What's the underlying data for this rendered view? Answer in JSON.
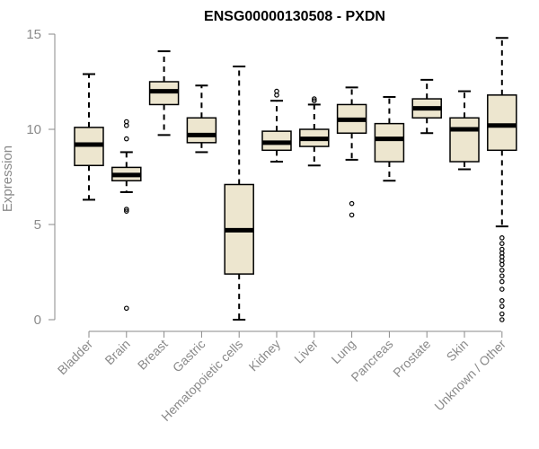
{
  "chart_data": {
    "type": "boxplot",
    "title": "ENSG00000130508 - PXDN",
    "xlabel": "",
    "ylabel": "Expression",
    "ylim": [
      0,
      15
    ],
    "yticks": [
      0,
      5,
      10,
      15
    ],
    "box_fill": "#ede6cf",
    "box_stroke": "#000000",
    "axis_color": "#8a8a8a",
    "categories": [
      "Bladder",
      "Brain",
      "Breast",
      "Gastric",
      "Hematopoietic cells",
      "Kidney",
      "Liver",
      "Lung",
      "Pancreas",
      "Prostate",
      "Skin",
      "Unknown / Other"
    ],
    "boxes": [
      {
        "name": "Bladder",
        "whislo": 6.3,
        "q1": 8.1,
        "med": 9.2,
        "q3": 10.1,
        "whishi": 12.9,
        "fliers": []
      },
      {
        "name": "Brain",
        "whislo": 6.7,
        "q1": 7.3,
        "med": 7.6,
        "q3": 8.0,
        "whishi": 8.8,
        "fliers": [
          10.4,
          10.2,
          9.5,
          5.8,
          5.7,
          0.6
        ]
      },
      {
        "name": "Breast",
        "whislo": 9.7,
        "q1": 11.3,
        "med": 12.0,
        "q3": 12.5,
        "whishi": 14.1,
        "fliers": []
      },
      {
        "name": "Gastric",
        "whislo": 8.8,
        "q1": 9.3,
        "med": 9.7,
        "q3": 10.6,
        "whishi": 12.3,
        "fliers": []
      },
      {
        "name": "Hematopoietic cells",
        "whislo": 0.0,
        "q1": 2.4,
        "med": 4.7,
        "q3": 7.1,
        "whishi": 13.3,
        "fliers": []
      },
      {
        "name": "Kidney",
        "whislo": 8.3,
        "q1": 8.9,
        "med": 9.3,
        "q3": 9.9,
        "whishi": 11.5,
        "fliers": [
          12.0,
          11.8
        ]
      },
      {
        "name": "Liver",
        "whislo": 8.1,
        "q1": 9.1,
        "med": 9.5,
        "q3": 10.0,
        "whishi": 11.3,
        "fliers": [
          11.6,
          11.5
        ]
      },
      {
        "name": "Lung",
        "whislo": 8.4,
        "q1": 9.8,
        "med": 10.5,
        "q3": 11.3,
        "whishi": 12.2,
        "fliers": [
          6.1,
          5.5
        ]
      },
      {
        "name": "Pancreas",
        "whislo": 7.3,
        "q1": 8.3,
        "med": 9.5,
        "q3": 10.3,
        "whishi": 11.7,
        "fliers": []
      },
      {
        "name": "Prostate",
        "whislo": 9.8,
        "q1": 10.6,
        "med": 11.1,
        "q3": 11.6,
        "whishi": 12.6,
        "fliers": []
      },
      {
        "name": "Skin",
        "whislo": 7.9,
        "q1": 8.3,
        "med": 10.0,
        "q3": 10.6,
        "whishi": 12.0,
        "fliers": []
      },
      {
        "name": "Unknown / Other",
        "whislo": 4.9,
        "q1": 8.9,
        "med": 10.2,
        "q3": 11.8,
        "whishi": 14.8,
        "fliers": [
          4.3,
          4.0,
          3.7,
          3.5,
          3.3,
          3.1,
          2.9,
          2.6,
          2.3,
          2.0,
          1.6,
          1.0,
          0.7,
          0.3,
          0.0
        ]
      }
    ]
  }
}
